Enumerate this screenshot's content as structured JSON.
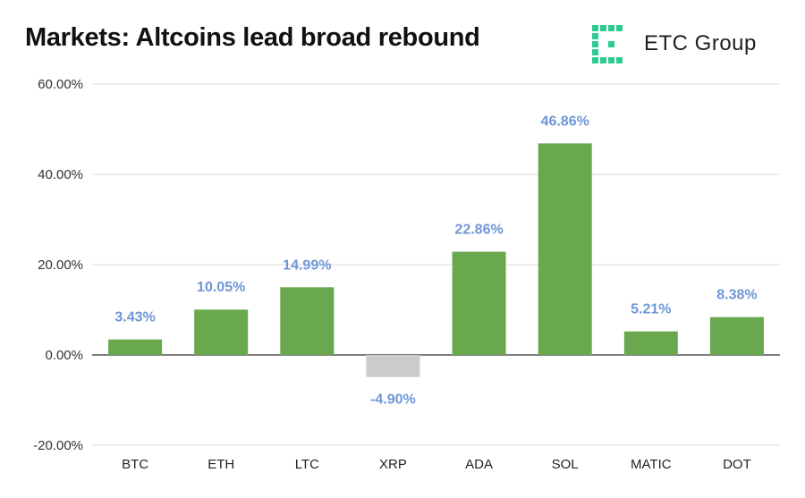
{
  "header": {
    "title": "Markets: Altcoins lead broad rebound"
  },
  "brand": {
    "name": "ETC Group",
    "accent": "#2ecc8f"
  },
  "colors": {
    "positive_bar": "#6aa84f",
    "negative_bar": "#cccccc",
    "data_label": "#6f96d6",
    "grid": "#d9d9d9",
    "zero_line": "#333333"
  },
  "chart_data": {
    "type": "bar",
    "title": "Markets: Altcoins lead broad rebound",
    "categories": [
      "BTC",
      "ETH",
      "LTC",
      "XRP",
      "ADA",
      "SOL",
      "MATIC",
      "DOT"
    ],
    "values": [
      3.43,
      10.05,
      14.99,
      -4.9,
      22.86,
      46.86,
      5.21,
      8.38
    ],
    "data_labels": [
      "3.43%",
      "10.05%",
      "14.99%",
      "-4.90%",
      "22.86%",
      "46.86%",
      "5.21%",
      "8.38%"
    ],
    "yticks": [
      60,
      40,
      20,
      0,
      -20
    ],
    "ytick_labels": [
      "60.00%",
      "40.00%",
      "20.00%",
      "0.00%",
      "-20.00%"
    ],
    "ylim": [
      -20,
      60
    ],
    "xlabel": "",
    "ylabel": "",
    "grid": true,
    "legend": "none"
  }
}
